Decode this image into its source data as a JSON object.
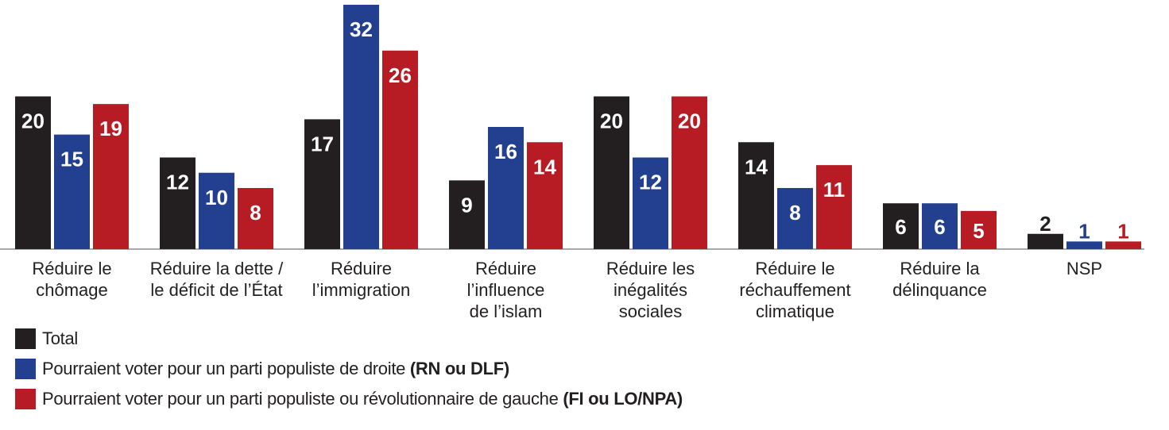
{
  "chart_data": {
    "type": "bar",
    "title": "",
    "xlabel": "",
    "ylabel": "",
    "ylim": [
      0,
      32
    ],
    "grid": false,
    "legend_position": "bottom-left",
    "categories": [
      [
        "Réduire le",
        "chômage"
      ],
      [
        "Réduire la dette /",
        "le déficit de l’État"
      ],
      [
        "Réduire",
        "l’immigration"
      ],
      [
        "Réduire",
        "l’influence",
        "de l’islam"
      ],
      [
        "Réduire les",
        "inégalités",
        "sociales"
      ],
      [
        "Réduire le",
        "réchauffement",
        "climatique"
      ],
      [
        "Réduire la",
        "délinquance"
      ],
      [
        "NSP"
      ]
    ],
    "series": [
      {
        "name": "Total",
        "name_bold": "",
        "color": "#231f20",
        "values": [
          20,
          12,
          17,
          9,
          20,
          14,
          6,
          2
        ]
      },
      {
        "name": "Pourraient voter pour un parti populiste de droite ",
        "name_bold": "(RN ou DLF)",
        "color": "#22408f",
        "values": [
          15,
          10,
          32,
          16,
          12,
          8,
          6,
          1
        ]
      },
      {
        "name": "Pourraient voter pour un parti populiste ou révolutionnaire de gauche ",
        "name_bold": "(FI ou LO/NPA)",
        "color": "#b71c24",
        "values": [
          19,
          8,
          26,
          14,
          20,
          11,
          5,
          1
        ]
      }
    ]
  }
}
